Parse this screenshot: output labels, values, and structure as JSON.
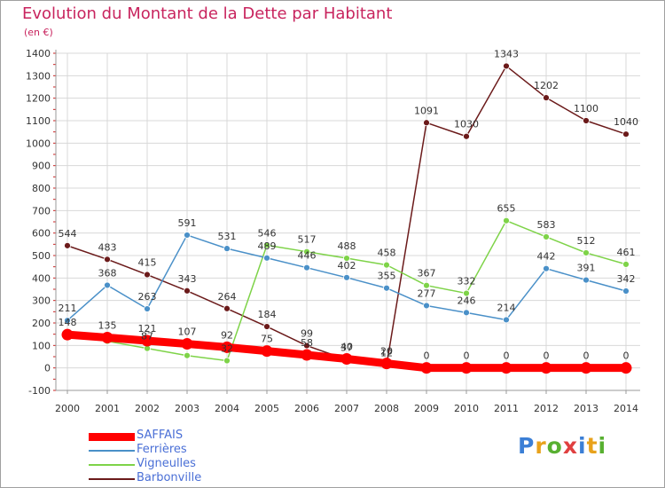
{
  "title": "Evolution du Montant de la Dette par Habitant",
  "subtitle": "(en €)",
  "logo": {
    "text": "Proxiti",
    "colors": [
      "#3b7fd6",
      "#e8a21c",
      "#58b031",
      "#e04040",
      "#3b7fd6",
      "#e8a21c",
      "#58b031"
    ]
  },
  "chart_data": {
    "type": "line",
    "title": "Evolution du Montant de la Dette par Habitant",
    "ylabel": "(en €)",
    "x": [
      "2000",
      "2001",
      "2002",
      "2003",
      "2004",
      "2005",
      "2006",
      "2007",
      "2008",
      "2009",
      "2010",
      "2011",
      "2012",
      "2013",
      "2014"
    ],
    "ylim": [
      -100,
      1400
    ],
    "yticks": [
      -100,
      0,
      100,
      200,
      300,
      400,
      500,
      600,
      700,
      800,
      900,
      1000,
      1100,
      1200,
      1300,
      1400
    ],
    "grid": true,
    "legend_position": "bottom-left",
    "series": [
      {
        "name": "SAFFAIS",
        "color": "#ff0000",
        "values": [
          148,
          135,
          121,
          107,
          92,
          75,
          58,
          40,
          20,
          0,
          0,
          0,
          0,
          0,
          0
        ],
        "labels": [
          "148",
          "135",
          "121",
          "107",
          "92",
          "75",
          "58",
          "40",
          "20",
          "0",
          "0",
          "0",
          "0",
          "0",
          "0"
        ]
      },
      {
        "name": "Ferrières",
        "color": "#4a90c8",
        "values": [
          211,
          368,
          263,
          591,
          531,
          489,
          446,
          402,
          355,
          277,
          246,
          214,
          442,
          391,
          342
        ],
        "labels": [
          "211",
          "368",
          "263",
          "591",
          "531",
          "489",
          "446",
          "402",
          "355",
          "277",
          "246",
          "214",
          "442",
          "391",
          "342"
        ]
      },
      {
        "name": "Vigneulles",
        "color": "#7ed348",
        "values": [
          148,
          119,
          87,
          55,
          32,
          546,
          517,
          488,
          458,
          367,
          332,
          655,
          583,
          512,
          461
        ],
        "labels": [
          "",
          "",
          "87",
          "",
          "32",
          "546",
          "517",
          "488",
          "458",
          "367",
          "332",
          "655",
          "583",
          "512",
          "461"
        ]
      },
      {
        "name": "Barbonville",
        "color": "#6b1a1a",
        "values": [
          544,
          483,
          415,
          343,
          264,
          184,
          99,
          37,
          12,
          1091,
          1030,
          1343,
          1202,
          1100,
          1040
        ],
        "labels": [
          "544",
          "483",
          "415",
          "343",
          "264",
          "184",
          "99",
          "37",
          "12",
          "1091",
          "1030",
          "1343",
          "1202",
          "1100",
          "1040"
        ]
      }
    ]
  }
}
